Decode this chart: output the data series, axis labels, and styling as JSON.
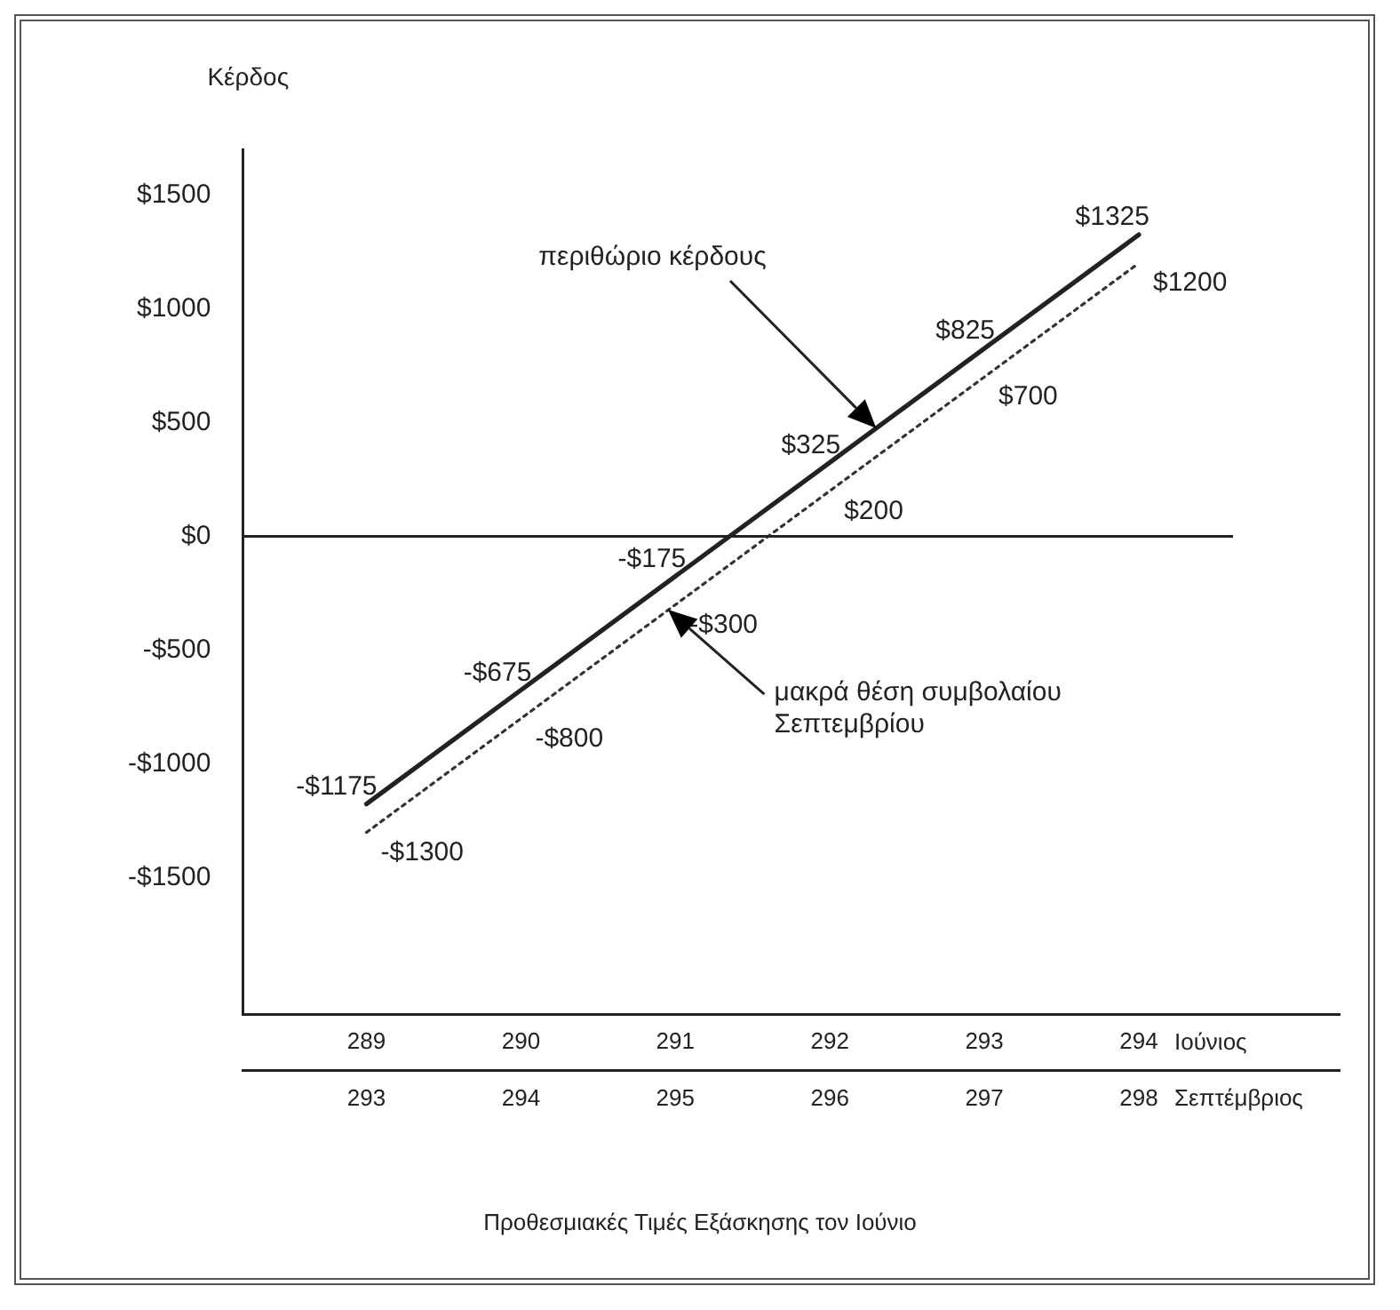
{
  "chart_data": {
    "type": "line",
    "ylabel": "Κέρδος",
    "xlabel": "Ιούνιος",
    "x2label": "Σεπτέμβριος",
    "x": [
      289,
      290,
      291,
      292,
      293,
      294
    ],
    "series": [
      {
        "color": "#222222",
        "line_style": "solid",
        "values": [
          -1175,
          -675,
          -175,
          325,
          825,
          1325
        ],
        "value_labels": [
          "-$1175",
          "-$675",
          "-$175",
          "$325",
          "$825",
          "$1325"
        ]
      },
      {
        "color": "#333333",
        "line_style": "dotted",
        "values": [
          -1300,
          -800,
          -300,
          200,
          700,
          1200
        ],
        "value_labels": [
          "-$1300",
          "-$800",
          "-$300",
          "$200",
          "$700",
          "$1200"
        ]
      }
    ],
    "xlim": [
      288.2,
      295.3
    ],
    "xticks": [
      289,
      290,
      291,
      292,
      293,
      294
    ],
    "x2lim": [
      292.2,
      299.3
    ],
    "x2ticks": [
      293,
      294,
      295,
      296,
      297,
      298
    ],
    "ylim": [
      -2100,
      1700
    ],
    "yticks": [
      {
        "value": 1500,
        "label": "$1500"
      },
      {
        "value": 1000,
        "label": "$1000"
      },
      {
        "value": 500,
        "label": "$500"
      },
      {
        "value": 0,
        "label": "$0"
      },
      {
        "value": -500,
        "label": "-$500"
      },
      {
        "value": -1000,
        "label": "-$1000"
      },
      {
        "value": -1500,
        "label": "-$1500"
      }
    ],
    "ref_lines": [
      {
        "axis": "y",
        "value": 0
      }
    ],
    "annotations": [
      "περιθώριο κέρδους",
      "μακρά θέση συμβολαίου Σεπτεμβρίου",
      "Προθεσμιακές Τιμές Εξάσκησης τον Ιούνιο"
    ]
  }
}
